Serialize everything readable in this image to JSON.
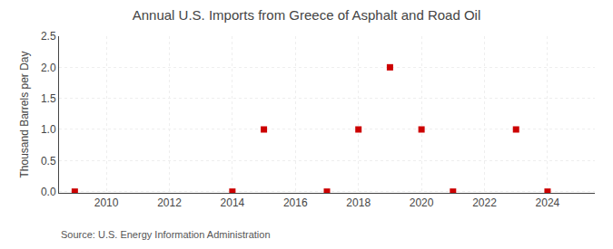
{
  "chart_data": {
    "type": "scatter",
    "title": "Annual U.S. Imports from Greece of Asphalt and Road Oil",
    "ylabel": "Thousand Barrels per Day",
    "annotations": [
      "Source: U.S. Energy Information Administration"
    ],
    "x": [
      2009,
      2014,
      2015,
      2017,
      2018,
      2019,
      2020,
      2021,
      2023,
      2024
    ],
    "values": [
      0.0,
      0.0,
      1.0,
      0.0,
      1.0,
      2.0,
      1.0,
      0.0,
      1.0,
      0.0
    ],
    "color": "#cc0000",
    "marker": "square",
    "xlim": [
      2008.5,
      2025.5
    ],
    "ylim": [
      -0.02,
      2.5
    ],
    "xticks": [
      2010,
      2012,
      2014,
      2016,
      2018,
      2020,
      2022,
      2024
    ],
    "yticks": [
      {
        "value": 0.0,
        "label": "0.0"
      },
      0.5,
      {
        "value": 1.0,
        "label": "1.0"
      },
      1.5,
      {
        "value": 2.0,
        "label": "2.0"
      },
      2.5
    ],
    "grid": true
  }
}
